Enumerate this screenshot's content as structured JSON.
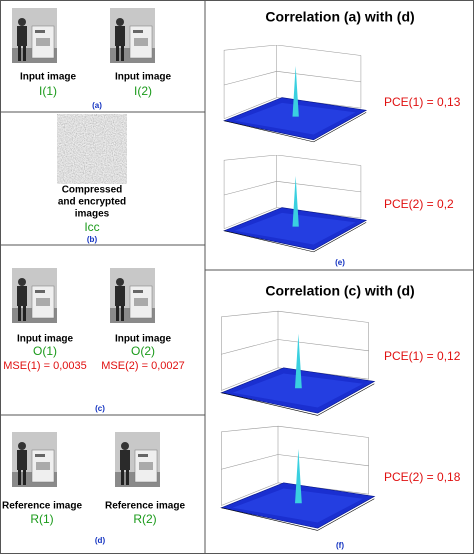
{
  "a": {
    "images": [
      {
        "caption": "Input image",
        "label": "I(1)"
      },
      {
        "caption": "Input image",
        "label": "I(2)"
      }
    ],
    "tag": "(a)"
  },
  "b": {
    "caption": [
      "Compressed",
      "and encrypted",
      "images"
    ],
    "label": "Icc",
    "tag": "(b)"
  },
  "c": {
    "images": [
      {
        "caption": "Input image",
        "label": "O(1)",
        "metric": "MSE(1) = 0,0035"
      },
      {
        "caption": "Input image",
        "label": "O(2)",
        "metric": "MSE(2) = 0,0027"
      }
    ],
    "tag": "(c)"
  },
  "d": {
    "images": [
      {
        "caption": "Reference image",
        "label": "R(1)"
      },
      {
        "caption": "Reference image",
        "label": "R(2)"
      }
    ],
    "tag": "(d)"
  },
  "e": {
    "title": "Correlation (a) with (d)",
    "metrics": [
      "PCE(1) = 0,13",
      "PCE(2) = 0,2"
    ],
    "tag": "(e)"
  },
  "f": {
    "title": "Correlation (c) with (d)",
    "metrics": [
      "PCE(1) = 0,12",
      "PCE(2) = 0,18"
    ],
    "tag": "(f)"
  }
}
